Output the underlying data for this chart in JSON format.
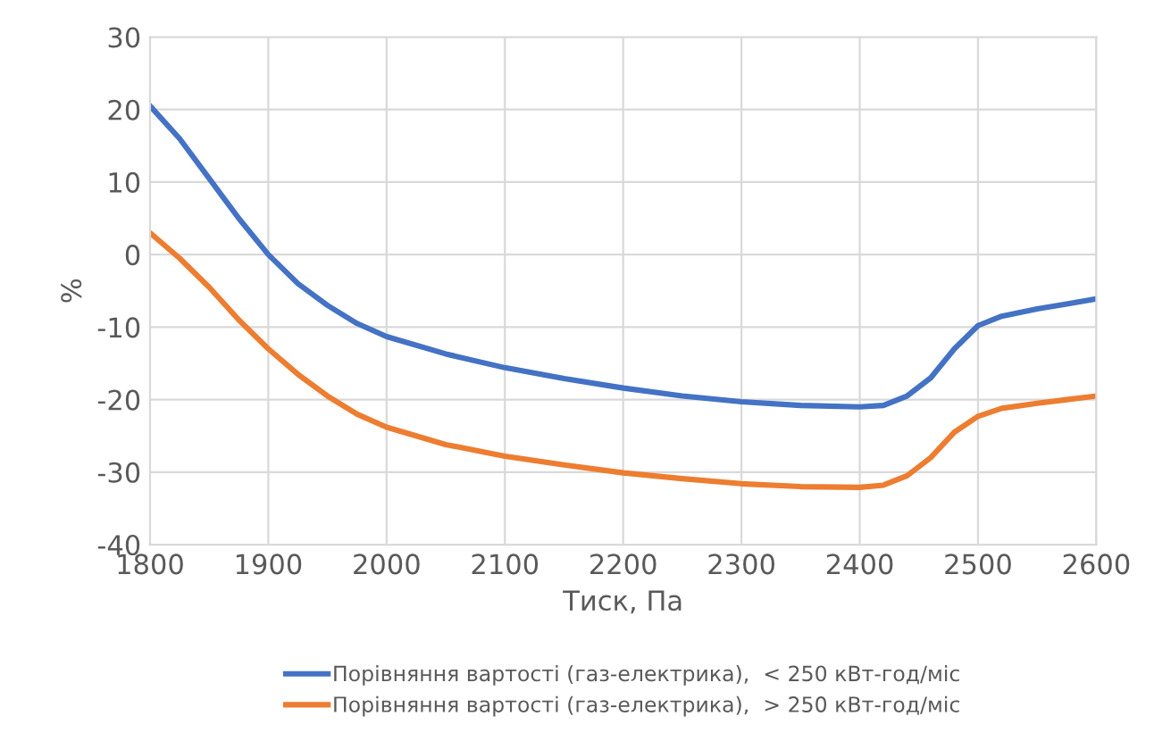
{
  "chart_data": {
    "type": "line",
    "xlabel": "Тиск, Па",
    "ylabel": "%",
    "xlim": [
      1800,
      2600
    ],
    "xticks": [
      1800,
      1900,
      2000,
      2100,
      2200,
      2300,
      2400,
      2500,
      2600
    ],
    "ylim": [
      -40,
      30
    ],
    "yticks": [
      -40,
      -30,
      -20,
      -10,
      0,
      10,
      20,
      30
    ],
    "grid": true,
    "legend": "bottom",
    "marker": "none",
    "line_style": "solid",
    "x": [
      1800,
      1825,
      1850,
      1875,
      1900,
      1925,
      1950,
      1975,
      2000,
      2050,
      2100,
      2150,
      2200,
      2250,
      2300,
      2350,
      2400,
      2420,
      2440,
      2460,
      2480,
      2500,
      2520,
      2550,
      2575,
      2600
    ],
    "series": [
      {
        "name": "Порівняння вартості (газ-електрика),  < 250 кВт-год/міс",
        "color": "#4472c4",
        "values": [
          20.5,
          16,
          10.5,
          5,
          0,
          -4,
          -7,
          -9.5,
          -11.3,
          -13.7,
          -15.6,
          -17.1,
          -18.4,
          -19.5,
          -20.3,
          -20.8,
          -21,
          -20.8,
          -19.5,
          -17,
          -13,
          -9.8,
          -8.5,
          -7.5,
          -6.8,
          -6.1
        ]
      },
      {
        "name": "Порівняння вартості (газ-електрика),  > 250 кВт-год/міс",
        "color": "#ed7d31",
        "values": [
          3,
          -0.5,
          -4.5,
          -9,
          -13,
          -16.5,
          -19.5,
          -22,
          -23.8,
          -26.2,
          -27.8,
          -29,
          -30.1,
          -30.9,
          -31.6,
          -32,
          -32.1,
          -31.8,
          -30.5,
          -28,
          -24.5,
          -22.3,
          -21.2,
          -20.5,
          -20,
          -19.5
        ]
      }
    ]
  }
}
